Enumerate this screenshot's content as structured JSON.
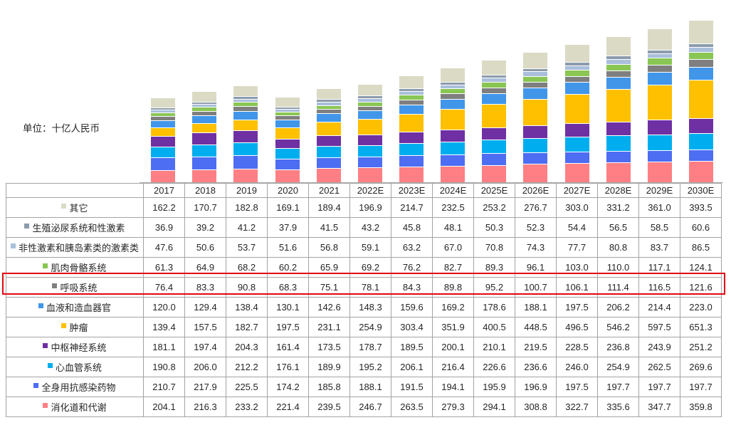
{
  "unit_label": "单位：十亿人民币",
  "chart_data": {
    "type": "bar",
    "stacked": true,
    "title": "",
    "xlabel": "",
    "ylabel": "十亿人民币",
    "y_axis_visible": false,
    "legend_position": "table-left-column",
    "categories": [
      "2017",
      "2018",
      "2019",
      "2020",
      "2021",
      "2022E",
      "2023E",
      "2024E",
      "2025E",
      "2026E",
      "2027E",
      "2028E",
      "2029E",
      "2030E"
    ],
    "series": [
      {
        "name": "其它",
        "color": "#DBDAC5",
        "values": [
          "162.2",
          "170.7",
          "182.8",
          "169.1",
          "189.4",
          "196.9",
          "214.7",
          "232.5",
          "253.2",
          "276.7",
          "303.0",
          "331.2",
          "361.0",
          "393.5"
        ]
      },
      {
        "name": "生殖泌尿系统和性激素",
        "color": "#8C9BAC",
        "values": [
          "36.9",
          "39.2",
          "41.2",
          "37.9",
          "41.5",
          "43.2",
          "45.8",
          "48.1",
          "50.3",
          "52.3",
          "54.4",
          "56.5",
          "58.5",
          "60.6"
        ]
      },
      {
        "name": "非性激素和胰岛素类的激素类",
        "color": "#A9BFDB",
        "values": [
          "47.6",
          "50.6",
          "53.7",
          "51.6",
          "56.8",
          "59.1",
          "63.2",
          "67.0",
          "70.8",
          "74.3",
          "77.7",
          "80.8",
          "83.7",
          "86.5"
        ]
      },
      {
        "name": "肌肉骨骼系统",
        "color": "#89C653",
        "values": [
          "61.3",
          "64.9",
          "68.2",
          "60.2",
          "65.9",
          "69.2",
          "76.2",
          "82.7",
          "89.3",
          "96.1",
          "103.0",
          "110.0",
          "117.1",
          "124.1"
        ]
      },
      {
        "name": "呼吸系统",
        "color": "#7F7F7F",
        "values": [
          "76.4",
          "83.3",
          "90.8",
          "68.3",
          "75.1",
          "78.1",
          "84.3",
          "89.8",
          "95.2",
          "100.7",
          "106.1",
          "111.4",
          "116.5",
          "121.6"
        ]
      },
      {
        "name": "血液和造血器官",
        "color": "#4196EA",
        "values": [
          "120.0",
          "129.4",
          "138.4",
          "130.1",
          "142.6",
          "148.3",
          "159.6",
          "169.2",
          "178.6",
          "188.1",
          "197.5",
          "206.2",
          "214.4",
          "223.0"
        ]
      },
      {
        "name": "肿瘤",
        "color": "#FFC000",
        "values": [
          "139.4",
          "157.5",
          "182.7",
          "197.5",
          "231.1",
          "254.9",
          "303.4",
          "351.9",
          "400.5",
          "448.5",
          "496.5",
          "546.2",
          "597.5",
          "651.3"
        ]
      },
      {
        "name": "中枢神经系统",
        "color": "#6F30A3",
        "values": [
          "181.1",
          "197.4",
          "204.3",
          "161.4",
          "173.5",
          "178.7",
          "189.5",
          "200.1",
          "210.1",
          "219.5",
          "228.5",
          "236.8",
          "243.9",
          "251.2"
        ]
      },
      {
        "name": "心血管系统",
        "color": "#00AEEF",
        "values": [
          "190.8",
          "206.0",
          "212.2",
          "176.1",
          "189.9",
          "195.2",
          "206.1",
          "216.4",
          "226.6",
          "236.6",
          "246.0",
          "254.9",
          "262.5",
          "269.6"
        ]
      },
      {
        "name": "全身用抗感染药物",
        "color": "#4D6DF3",
        "values": [
          "210.7",
          "217.9",
          "225.5",
          "174.2",
          "185.8",
          "188.1",
          "191.5",
          "194.1",
          "195.9",
          "196.9",
          "197.5",
          "197.7",
          "197.7",
          "197.7"
        ]
      },
      {
        "name": "消化道和代谢",
        "color": "#FF7F84",
        "values": [
          "204.1",
          "216.3",
          "233.2",
          "221.4",
          "239.5",
          "246.7",
          "263.5",
          "279.3",
          "294.1",
          "308.8",
          "322.7",
          "335.6",
          "347.7",
          "359.8"
        ]
      }
    ],
    "stack_order": "first series renders at top of each stacked column; last series at bottom",
    "highlighted_row": "呼吸系统",
    "highlight_color": "#e30613"
  }
}
